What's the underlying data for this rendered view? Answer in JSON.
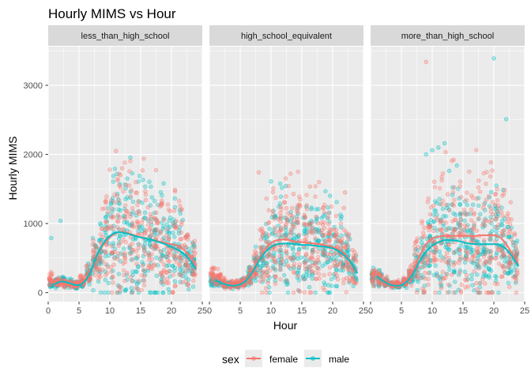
{
  "chart_data": {
    "type": "scatter",
    "title": "Hourly MIMS vs Hour",
    "xlabel": "Hour",
    "ylabel": "Hourly MIMS",
    "xlim": [
      0,
      25
    ],
    "ylim": [
      -130,
      3560
    ],
    "x_ticks": [
      0,
      5,
      10,
      15,
      20,
      25
    ],
    "x_tick_labels": [
      "0",
      "5",
      "10",
      "15",
      "20",
      "25"
    ],
    "y_ticks": [
      0,
      1000,
      2000,
      3000
    ],
    "y_tick_labels": [
      "0",
      "1000",
      "2000",
      "3000"
    ],
    "grid": true,
    "legend": {
      "title": "sex",
      "position": "bottom",
      "entries": [
        {
          "name": "female",
          "color": "#f8766d"
        },
        {
          "name": "male",
          "color": "#00bfc4"
        }
      ]
    },
    "panels": [
      {
        "label": "less_than_high_school",
        "smooth": [
          {
            "name": "female",
            "x": [
              1,
              2,
              3,
              4,
              5,
              6,
              7,
              8,
              9,
              10,
              11,
              12,
              13,
              14,
              15,
              16,
              17,
              18,
              19,
              20,
              21,
              22,
              23,
              24
            ],
            "y": [
              180,
              140,
              120,
              110,
              130,
              190,
              320,
              540,
              700,
              800,
              860,
              880,
              860,
              830,
              800,
              780,
              760,
              740,
              720,
              700,
              680,
              620,
              520,
              360
            ]
          },
          {
            "name": "male",
            "x": [
              1,
              2,
              3,
              4,
              5,
              6,
              7,
              8,
              9,
              10,
              11,
              12,
              13,
              14,
              15,
              16,
              17,
              18,
              19,
              20,
              21,
              22,
              23,
              24
            ],
            "y": [
              120,
              160,
              150,
              120,
              110,
              170,
              330,
              560,
              720,
              820,
              870,
              870,
              850,
              820,
              800,
              780,
              760,
              730,
              700,
              660,
              620,
              560,
              470,
              340
            ]
          }
        ],
        "outliers": [
          {
            "name": "female",
            "x": 11,
            "y": 2050
          },
          {
            "name": "female",
            "x": 12,
            "y": 1800
          },
          {
            "name": "female",
            "x": 10,
            "y": 1780
          },
          {
            "name": "male",
            "x": 2,
            "y": 1040
          },
          {
            "name": "male",
            "x": 0.5,
            "y": 790
          }
        ]
      },
      {
        "label": "high_school_equivalent",
        "smooth": [
          {
            "name": "female",
            "x": [
              1,
              2,
              3,
              4,
              5,
              6,
              7,
              8,
              9,
              10,
              11,
              12,
              13,
              14,
              15,
              16,
              17,
              18,
              19,
              20,
              21,
              22,
              23,
              24
            ],
            "y": [
              250,
              180,
              130,
              110,
              130,
              200,
              320,
              480,
              620,
              720,
              760,
              770,
              760,
              740,
              730,
              720,
              710,
              700,
              680,
              660,
              620,
              560,
              440,
              290
            ]
          },
          {
            "name": "male",
            "x": [
              1,
              2,
              3,
              4,
              5,
              6,
              7,
              8,
              9,
              10,
              11,
              12,
              13,
              14,
              15,
              16,
              17,
              18,
              19,
              20,
              21,
              22,
              23,
              24
            ],
            "y": [
              180,
              140,
              110,
              100,
              120,
              180,
              300,
              450,
              580,
              660,
              700,
              710,
              710,
              700,
              690,
              690,
              680,
              670,
              660,
              640,
              600,
              530,
              430,
              280
            ]
          }
        ],
        "outliers": [
          {
            "name": "female",
            "x": 8,
            "y": 1740
          },
          {
            "name": "male",
            "x": 10,
            "y": 1610
          },
          {
            "name": "female",
            "x": 22,
            "y": 1450
          }
        ]
      },
      {
        "label": "more_than_high_school",
        "smooth": [
          {
            "name": "female",
            "x": [
              1,
              2,
              3,
              4,
              5,
              6,
              7,
              8,
              9,
              10,
              11,
              12,
              13,
              14,
              15,
              16,
              17,
              18,
              19,
              20,
              21,
              22,
              23,
              24
            ],
            "y": [
              250,
              170,
              120,
              110,
              130,
              200,
              340,
              540,
              700,
              780,
              810,
              820,
              820,
              820,
              820,
              820,
              820,
              830,
              830,
              830,
              800,
              700,
              560,
              400
            ]
          },
          {
            "name": "male",
            "x": [
              1,
              2,
              3,
              4,
              5,
              6,
              7,
              8,
              9,
              10,
              11,
              12,
              13,
              14,
              15,
              16,
              17,
              18,
              19,
              20,
              21,
              22,
              23,
              24
            ],
            "y": [
              240,
              170,
              120,
              100,
              110,
              170,
              290,
              460,
              590,
              680,
              730,
              760,
              760,
              750,
              730,
              710,
              700,
              700,
              700,
              700,
              690,
              630,
              520,
              380
            ]
          }
        ],
        "outliers": [
          {
            "name": "female",
            "x": 9,
            "y": 3340
          },
          {
            "name": "male",
            "x": 20,
            "y": 3390
          },
          {
            "name": "male",
            "x": 22,
            "y": 2510
          },
          {
            "name": "male",
            "x": 12,
            "y": 2160
          },
          {
            "name": "male",
            "x": 10,
            "y": 2060
          },
          {
            "name": "male",
            "x": 11,
            "y": 2100
          },
          {
            "name": "male",
            "x": 9,
            "y": 2000
          },
          {
            "name": "male",
            "x": 14,
            "y": 1840
          },
          {
            "name": "female",
            "x": 16,
            "y": 1750
          }
        ]
      }
    ]
  }
}
